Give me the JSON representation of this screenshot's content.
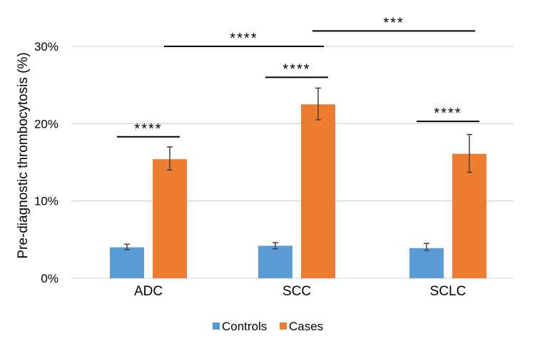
{
  "chart_data": {
    "type": "bar",
    "ylabel": "Pre-diagnostic thrombocytosis (%)",
    "xlabel": "",
    "ylim": [
      0,
      30
    ],
    "yticks": [
      0,
      10,
      20,
      30
    ],
    "ytick_labels": [
      "0%",
      "10%",
      "20%",
      "30%"
    ],
    "grid": true,
    "categories": [
      "ADC",
      "SCC",
      "SCLC"
    ],
    "series": [
      {
        "name": "Controls",
        "color": "#5B9BD5",
        "values": [
          4.0,
          4.2,
          3.9
        ],
        "err_low": [
          3.7,
          3.8,
          3.6
        ],
        "err_high": [
          4.4,
          4.6,
          4.5
        ]
      },
      {
        "name": "Cases",
        "color": "#ED7D31",
        "values": [
          15.4,
          22.5,
          16.1
        ],
        "err_low": [
          14.0,
          20.5,
          13.7
        ],
        "err_high": [
          17.0,
          24.6,
          18.6
        ]
      }
    ],
    "legend_position": "bottom",
    "annotations": [
      {
        "label": "****",
        "from": "ADC-Controls",
        "to": "ADC-Cases",
        "level": 18.3
      },
      {
        "label": "****",
        "from": "SCC-Controls",
        "to": "SCC-Cases",
        "level": 26.0
      },
      {
        "label": "****",
        "from": "SCLC-Controls",
        "to": "SCLC-Cases",
        "level": 20.3
      },
      {
        "label": "****",
        "from": "ADC-Cases",
        "to": "SCC-Cases",
        "level": 30.0
      },
      {
        "label": "***",
        "from": "SCC-Cases",
        "to": "SCLC-Cases",
        "level": 32.0
      }
    ]
  }
}
